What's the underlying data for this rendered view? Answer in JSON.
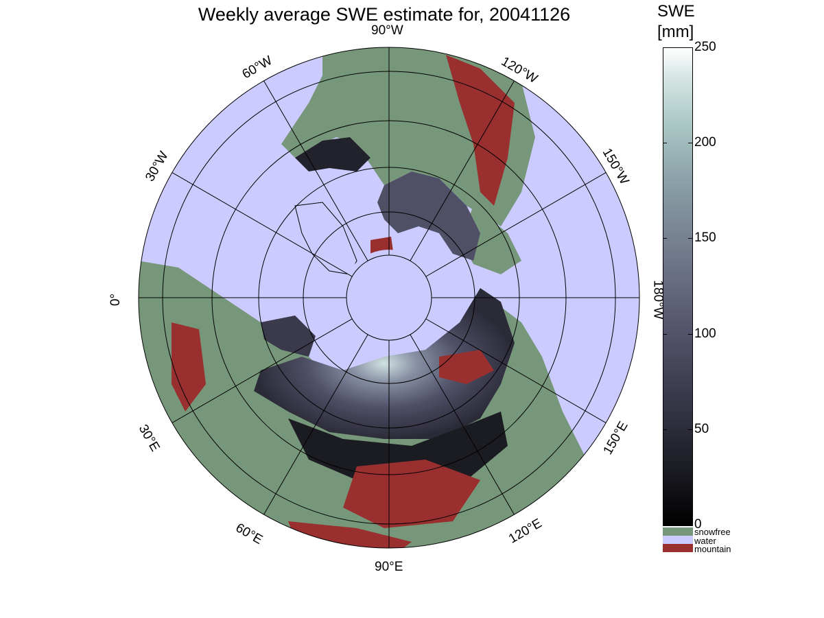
{
  "title": "Weekly average SWE estimate for, 20041126",
  "colorbar": {
    "title_line1": "SWE",
    "title_line2": "[mm]",
    "ticks": [
      "250",
      "200",
      "150",
      "100",
      "50",
      "0"
    ],
    "tick_values": [
      250,
      200,
      150,
      100,
      50,
      0
    ],
    "range": [
      0,
      250
    ],
    "colormap": "bone"
  },
  "legend": [
    {
      "label": "snowfree",
      "color": "#77977a"
    },
    {
      "label": "water",
      "color": "#cccbff"
    },
    {
      "label": "mountain",
      "color": "#9a2f2f"
    }
  ],
  "longitude_labels": {
    "top": "90°W",
    "w60": "60°W",
    "w120": "120°W",
    "w30": "30°W",
    "w150": "150°W",
    "left": "0°",
    "right": "180°W",
    "e30": "30°E",
    "e150": "150°E",
    "e60": "60°E",
    "e120": "120°E",
    "bottom": "90°E"
  },
  "projection": "north polar stereographic",
  "colors": {
    "water": "#cccbff",
    "land_snowfree": "#77977a",
    "mountain": "#9a2f2f",
    "grid": "#000000"
  }
}
